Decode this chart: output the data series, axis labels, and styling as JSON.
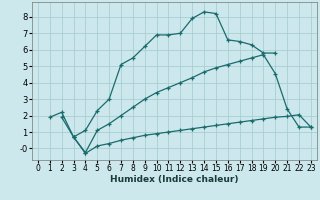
{
  "xlabel": "Humidex (Indice chaleur)",
  "bg_color": "#cce8ed",
  "grid_color": "#aacdd4",
  "line_color": "#1a6b6b",
  "line1_x": [
    1,
    2,
    3,
    4,
    5,
    6,
    7,
    8,
    9,
    10,
    11,
    12,
    13,
    14,
    15,
    16,
    17,
    18,
    19,
    20
  ],
  "line1_y": [
    1.9,
    2.2,
    0.7,
    1.1,
    2.3,
    3.0,
    5.1,
    5.5,
    6.2,
    6.9,
    6.9,
    7.0,
    7.9,
    8.3,
    8.2,
    6.6,
    6.5,
    6.3,
    5.8,
    5.8
  ],
  "line2_x": [
    2,
    3,
    4,
    5,
    6,
    7,
    8,
    9,
    10,
    11,
    12,
    13,
    14,
    15,
    16,
    17,
    18,
    19,
    20,
    21,
    22,
    23
  ],
  "line2_y": [
    1.9,
    0.7,
    -0.25,
    1.1,
    1.5,
    2.0,
    2.5,
    3.0,
    3.4,
    3.7,
    4.0,
    4.3,
    4.65,
    4.9,
    5.1,
    5.3,
    5.5,
    5.7,
    4.55,
    2.4,
    1.3,
    1.3
  ],
  "line3_x": [
    3,
    4,
    5,
    6,
    7,
    8,
    9,
    10,
    11,
    12,
    13,
    14,
    15,
    16,
    17,
    18,
    19,
    20,
    21,
    22,
    23
  ],
  "line3_y": [
    0.7,
    -0.3,
    0.15,
    0.3,
    0.5,
    0.65,
    0.8,
    0.9,
    1.0,
    1.1,
    1.2,
    1.3,
    1.4,
    1.5,
    1.6,
    1.7,
    1.8,
    1.9,
    1.95,
    2.05,
    1.3
  ],
  "xlim": [
    -0.5,
    23.5
  ],
  "ylim": [
    -0.7,
    8.9
  ],
  "xticks": [
    0,
    1,
    2,
    3,
    4,
    5,
    6,
    7,
    8,
    9,
    10,
    11,
    12,
    13,
    14,
    15,
    16,
    17,
    18,
    19,
    20,
    21,
    22,
    23
  ],
  "yticks": [
    0,
    1,
    2,
    3,
    4,
    5,
    6,
    7,
    8
  ]
}
